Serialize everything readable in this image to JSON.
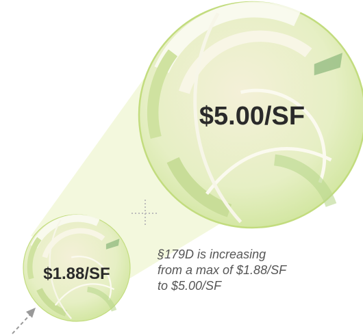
{
  "circles": [
    {
      "label": "$5.00/SF"
    },
    {
      "label": "$1.88/SF"
    }
  ],
  "caption": {
    "lines": [
      "§179D is increasing",
      "from a max of $1.88/SF",
      "to $5.00/SF"
    ]
  }
}
